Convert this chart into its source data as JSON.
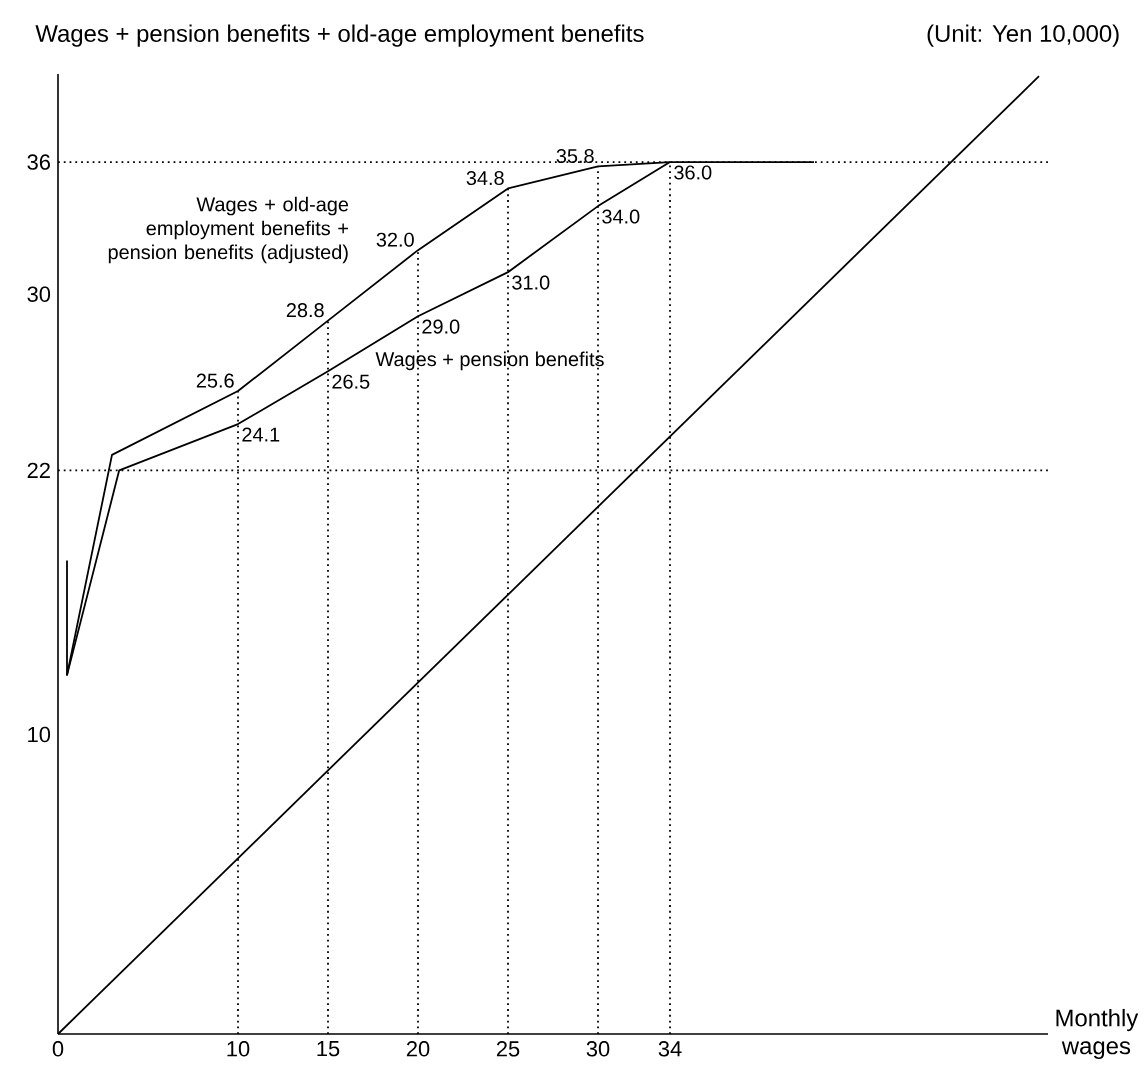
{
  "chart_data": {
    "type": "line",
    "ylabel": "Wages + pension benefits + old-age employment benefits",
    "xlabel": "Monthly wages",
    "annotations": [
      "(Unit: Yen 10,000)"
    ],
    "xlim": [
      0,
      55
    ],
    "ylim": [
      -3.6,
      40
    ],
    "xticks": [
      0,
      10,
      15,
      20,
      25,
      30,
      34
    ],
    "yticks": [
      10,
      22,
      30,
      36
    ],
    "grid": false,
    "legend": false,
    "marker": "none",
    "line_style": "solid",
    "series": [
      {
        "name": "Wages + old-age employment benefits + pension benefits (adjusted)",
        "color": "#000000",
        "x": [
          0.5,
          0.5,
          3,
          10,
          15,
          20,
          25,
          30,
          34,
          42
        ],
        "values": [
          17.9,
          12.7,
          22.7,
          25.6,
          28.8,
          32.0,
          34.8,
          35.8,
          36.0,
          36.0
        ],
        "value_labels": [
          null,
          null,
          null,
          "25.6",
          "28.8",
          "32.0",
          "34.8",
          "35.8",
          null,
          null
        ]
      },
      {
        "name": "Wages + pension benefits",
        "color": "#000000",
        "x": [
          0.5,
          3.4,
          10,
          15,
          20,
          25,
          30,
          34
        ],
        "values": [
          12.7,
          22.0,
          24.1,
          26.5,
          29.0,
          31.0,
          34.0,
          36.0
        ],
        "value_labels": [
          null,
          null,
          "24.1",
          "26.5",
          "29.0",
          "31.0",
          "34.0",
          "36.0"
        ]
      },
      {
        "color": "#000000",
        "x": [
          0,
          54.5
        ],
        "values": [
          -3.6,
          39.9
        ]
      }
    ],
    "ref_lines": [
      {
        "axis": "y",
        "value": 36,
        "line_style": "dotted"
      },
      {
        "axis": "y",
        "value": 22,
        "line_style": "dotted"
      },
      {
        "axis": "x",
        "value": 10,
        "line_style": "dotted"
      },
      {
        "axis": "x",
        "value": 15,
        "line_style": "dotted"
      },
      {
        "axis": "x",
        "value": 20,
        "line_style": "dotted"
      },
      {
        "axis": "x",
        "value": 25,
        "line_style": "dotted"
      },
      {
        "axis": "x",
        "value": 30,
        "line_style": "dotted"
      },
      {
        "axis": "x",
        "value": 34,
        "line_style": "dotted"
      }
    ]
  }
}
